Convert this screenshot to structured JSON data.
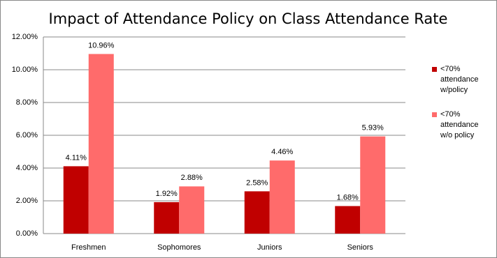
{
  "chart_data": {
    "type": "bar",
    "title": "Impact of Attendance Policy on Class Attendance Rate",
    "categories": [
      "Freshmen",
      "Sophomores",
      "Juniors",
      "Seniors"
    ],
    "series": [
      {
        "name": "<70% attendance w/policy",
        "color": "#c00000",
        "values": [
          4.11,
          1.92,
          2.58,
          1.68
        ],
        "value_labels": [
          "4.11%",
          "1.92%",
          "2.58%",
          "1.68%"
        ]
      },
      {
        "name": "<70% attendance w/o policy",
        "color": "#ff6b6b",
        "values": [
          10.96,
          2.88,
          4.46,
          5.93
        ],
        "value_labels": [
          "10.96%",
          "2.88%",
          "4.46%",
          "5.93%"
        ]
      }
    ],
    "ylim": [
      0,
      12
    ],
    "yticks": [
      {
        "value": 0,
        "label": "0.00%"
      },
      {
        "value": 2,
        "label": "2.00%"
      },
      {
        "value": 4,
        "label": "4.00%"
      },
      {
        "value": 6,
        "label": "6.00%"
      },
      {
        "value": 8,
        "label": "8.00%"
      },
      {
        "value": 10,
        "label": "10.00%"
      },
      {
        "value": 12,
        "label": "12.00%"
      }
    ],
    "grid": true,
    "legend": "right"
  }
}
